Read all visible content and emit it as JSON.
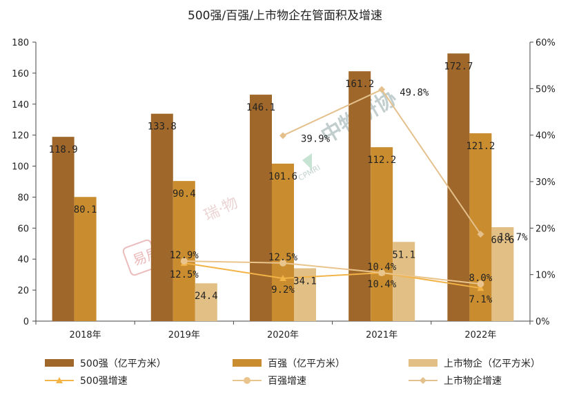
{
  "chart_data": {
    "type": "bar",
    "title": "500强/百强/上市物企在管面积及增速",
    "categories": [
      "2018年",
      "2019年",
      "2020年",
      "2021年",
      "2022年"
    ],
    "ylim": [
      0,
      180
    ],
    "y2lim": [
      0,
      60
    ],
    "y_ticks": [
      "0",
      "20",
      "40",
      "60",
      "80",
      "100",
      "120",
      "140",
      "160",
      "180"
    ],
    "y2_ticks": [
      "0%",
      "10%",
      "20%",
      "30%",
      "40%",
      "50%",
      "60%"
    ],
    "grid": false,
    "legend_position": "bottom",
    "bar_series": [
      {
        "name": "500强（亿平方米）",
        "color": "#A0672A",
        "values": [
          118.9,
          133.8,
          146.1,
          161.2,
          172.7
        ],
        "labels": [
          "118.9",
          "133.8",
          "146.1",
          "161.2",
          "172.7"
        ]
      },
      {
        "name": "百强（亿平方米）",
        "color": "#C98D30",
        "values": [
          80.1,
          90.4,
          101.6,
          112.2,
          121.2
        ],
        "labels": [
          "80.1",
          "90.4",
          "101.6",
          "112.2",
          "121.2"
        ]
      },
      {
        "name": "上市物企（亿平方米）",
        "color": "#E2BF84",
        "values": [
          null,
          24.4,
          34.1,
          51.1,
          60.6
        ],
        "labels": [
          "",
          "24.4",
          "34.1",
          "51.1",
          "60.6"
        ]
      }
    ],
    "line_series": [
      {
        "name": "500强增速",
        "color": "#F2B347",
        "marker": "triangle",
        "values": [
          null,
          12.5,
          9.2,
          10.4,
          7.1
        ],
        "labels": [
          "",
          "12.5%",
          "9.2%",
          "10.4%",
          "7.1%"
        ]
      },
      {
        "name": "百强增速",
        "color": "#E9C48C",
        "marker": "circle",
        "values": [
          null,
          12.9,
          12.5,
          10.4,
          8.0
        ],
        "labels": [
          "",
          "12.9%",
          "12.5%",
          "10.4%",
          "8.0%"
        ]
      },
      {
        "name": "上市物企增速",
        "color": "#E4C08C",
        "marker": "diamond",
        "values": [
          null,
          null,
          39.9,
          49.8,
          18.7
        ],
        "labels": [
          "",
          "",
          "39.9%",
          "49.8%",
          "18.7%"
        ]
      }
    ]
  },
  "watermarks": {
    "cpmri": "中物研协",
    "cpmri_latin": "CPMRI",
    "ruiwu": "瑞·物",
    "ruiwu_logo": "易居"
  }
}
